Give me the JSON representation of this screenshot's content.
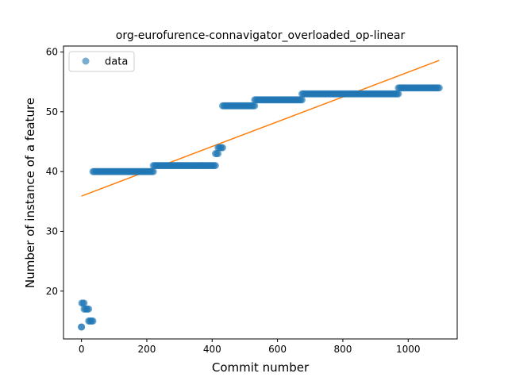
{
  "chart_data": {
    "type": "scatter",
    "title": "org-eurofurence-connavigator_overloaded_op-linear",
    "xlabel": "Commit number",
    "ylabel": "Number of instance of a feature",
    "xlim": [
      -55,
      1150
    ],
    "ylim": [
      12,
      61
    ],
    "xticks": [
      0,
      200,
      400,
      600,
      800,
      1000
    ],
    "yticks": [
      20,
      30,
      40,
      50,
      60
    ],
    "grid": false,
    "legend": {
      "placement": "top-left",
      "entries": [
        "data"
      ]
    },
    "series": [
      {
        "name": "data",
        "kind": "points",
        "color": "#1f77b4",
        "runs": [
          {
            "x_start": 0,
            "x_end": 0,
            "y": 14
          },
          {
            "x_start": 1,
            "x_end": 8,
            "y": 18
          },
          {
            "x_start": 8,
            "x_end": 22,
            "y": 17
          },
          {
            "x_start": 22,
            "x_end": 35,
            "y": 15
          },
          {
            "x_start": 35,
            "x_end": 220,
            "y": 40
          },
          {
            "x_start": 220,
            "x_end": 410,
            "y": 41
          },
          {
            "x_start": 410,
            "x_end": 418,
            "y": 43
          },
          {
            "x_start": 418,
            "x_end": 432,
            "y": 44
          },
          {
            "x_start": 432,
            "x_end": 530,
            "y": 51
          },
          {
            "x_start": 530,
            "x_end": 675,
            "y": 52
          },
          {
            "x_start": 675,
            "x_end": 970,
            "y": 53
          },
          {
            "x_start": 970,
            "x_end": 1095,
            "y": 54
          }
        ]
      },
      {
        "kind": "line",
        "color": "#ff7f0e",
        "x": [
          0,
          1095
        ],
        "y": [
          35.9,
          58.6
        ]
      }
    ]
  }
}
